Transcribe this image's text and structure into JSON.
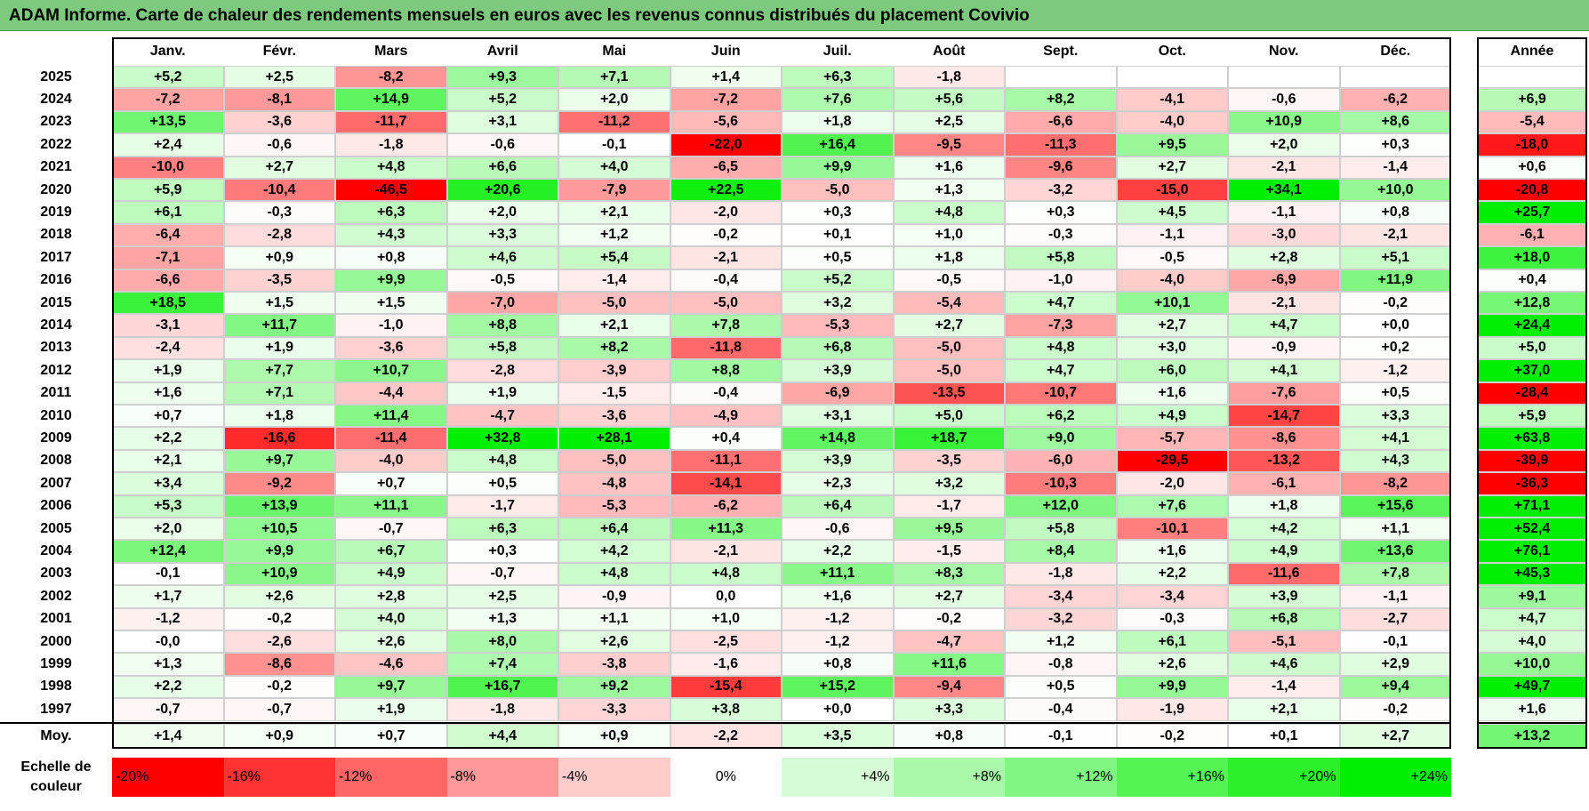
{
  "title": "ADAM Informe. Carte de chaleur des rendements mensuels en euros avec les revenus connus distribués du placement Covivio",
  "months": [
    "Janv.",
    "Févr.",
    "Mars",
    "Avril",
    "Mai",
    "Juin",
    "Juil.",
    "Août",
    "Sept.",
    "Oct.",
    "Nov.",
    "Déc."
  ],
  "year_header": "Année",
  "mean_label": "Moy.",
  "scale_label": "Echelle de couleur",
  "scale": [
    "-20%",
    "-16%",
    "-12%",
    "-8%",
    "-4%",
    "0%",
    "+4%",
    "+8%",
    "+12%",
    "+16%",
    "+20%",
    "+24%"
  ],
  "colors": {
    "title_bg": "#7DC97D",
    "negative": "#FF0000",
    "positive": "#00EE00",
    "neutral": "#FFFFFF"
  },
  "chart_data": {
    "type": "heatmap",
    "title": "ADAM Informe. Carte de chaleur des rendements mensuels en euros avec les revenus connus distribués du placement Covivio",
    "columns": [
      "Janv.",
      "Févr.",
      "Mars",
      "Avril",
      "Mai",
      "Juin",
      "Juil.",
      "Août",
      "Sept.",
      "Oct.",
      "Nov.",
      "Déc."
    ],
    "rows": [
      {
        "year": "2025",
        "values": [
          "+5,2",
          "+2,5",
          "-8,2",
          "+9,3",
          "+7,1",
          "+1,4",
          "+6,3",
          "-1,8",
          "",
          "",
          "",
          ""
        ],
        "annual": ""
      },
      {
        "year": "2024",
        "values": [
          "-7,2",
          "-8,1",
          "+14,9",
          "+5,2",
          "+2,0",
          "-7,2",
          "+7,6",
          "+5,6",
          "+8,2",
          "-4,1",
          "-0,6",
          "-6,2"
        ],
        "annual": "+6,9"
      },
      {
        "year": "2023",
        "values": [
          "+13,5",
          "-3,6",
          "-11,7",
          "+3,1",
          "-11,2",
          "-5,6",
          "+1,8",
          "+2,5",
          "-6,6",
          "-4,0",
          "+10,9",
          "+8,6"
        ],
        "annual": "-5,4"
      },
      {
        "year": "2022",
        "values": [
          "+2,4",
          "-0,6",
          "-1,8",
          "-0,6",
          "-0,1",
          "-22,0",
          "+16,4",
          "-9,5",
          "-11,3",
          "+9,5",
          "+2,0",
          "+0,3"
        ],
        "annual": "-18,0"
      },
      {
        "year": "2021",
        "values": [
          "-10,0",
          "+2,7",
          "+4,8",
          "+6,6",
          "+4,0",
          "-6,5",
          "+9,9",
          "+1,6",
          "-9,6",
          "+2,7",
          "-2,1",
          "-1,4"
        ],
        "annual": "+0,6"
      },
      {
        "year": "2020",
        "values": [
          "+5,9",
          "-10,4",
          "-46,5",
          "+20,6",
          "-7,9",
          "+22,5",
          "-5,0",
          "+1,3",
          "-3,2",
          "-15,0",
          "+34,1",
          "+10,0"
        ],
        "annual": "-20,8"
      },
      {
        "year": "2019",
        "values": [
          "+6,1",
          "-0,3",
          "+6,3",
          "+2,0",
          "+2,1",
          "-2,0",
          "+0,3",
          "+4,8",
          "+0,3",
          "+4,5",
          "-1,1",
          "+0,8"
        ],
        "annual": "+25,7"
      },
      {
        "year": "2018",
        "values": [
          "-6,4",
          "-2,8",
          "+4,3",
          "+3,3",
          "+1,2",
          "-0,2",
          "+0,1",
          "+1,0",
          "-0,3",
          "-1,1",
          "-3,0",
          "-2,1"
        ],
        "annual": "-6,1"
      },
      {
        "year": "2017",
        "values": [
          "-7,1",
          "+0,9",
          "+0,8",
          "+4,6",
          "+5,4",
          "-2,1",
          "+0,5",
          "+1,8",
          "+5,8",
          "-0,5",
          "+2,8",
          "+5,1"
        ],
        "annual": "+18,0"
      },
      {
        "year": "2016",
        "values": [
          "-6,6",
          "-3,5",
          "+9,9",
          "-0,5",
          "-1,4",
          "-0,4",
          "+5,2",
          "-0,5",
          "-1,0",
          "-4,0",
          "-6,9",
          "+11,9"
        ],
        "annual": "+0,4"
      },
      {
        "year": "2015",
        "values": [
          "+18,5",
          "+1,5",
          "+1,5",
          "-7,0",
          "-5,0",
          "-5,0",
          "+3,2",
          "-5,4",
          "+4,7",
          "+10,1",
          "-2,1",
          "-0,2"
        ],
        "annual": "+12,8"
      },
      {
        "year": "2014",
        "values": [
          "-3,1",
          "+11,7",
          "-1,0",
          "+8,8",
          "+2,1",
          "+7,8",
          "-5,3",
          "+2,7",
          "-7,3",
          "+2,7",
          "+4,7",
          "+0,0"
        ],
        "annual": "+24,4"
      },
      {
        "year": "2013",
        "values": [
          "-2,4",
          "+1,9",
          "-3,6",
          "+5,8",
          "+8,2",
          "-11,8",
          "+6,8",
          "-5,0",
          "+4,8",
          "+3,0",
          "-0,9",
          "+0,2"
        ],
        "annual": "+5,0"
      },
      {
        "year": "2012",
        "values": [
          "+1,9",
          "+7,7",
          "+10,7",
          "-2,8",
          "-3,9",
          "+8,8",
          "+3,9",
          "-5,0",
          "+4,7",
          "+6,0",
          "+4,1",
          "-1,2"
        ],
        "annual": "+37,0"
      },
      {
        "year": "2011",
        "values": [
          "+1,6",
          "+7,1",
          "-4,4",
          "+1,9",
          "-1,5",
          "-0,4",
          "-6,9",
          "-13,5",
          "-10,7",
          "+1,6",
          "-7,6",
          "+0,5"
        ],
        "annual": "-28,4"
      },
      {
        "year": "2010",
        "values": [
          "+0,7",
          "+1,8",
          "+11,4",
          "-4,7",
          "-3,6",
          "-4,9",
          "+3,1",
          "+5,0",
          "+6,2",
          "+4,9",
          "-14,7",
          "+3,3"
        ],
        "annual": "+5,9"
      },
      {
        "year": "2009",
        "values": [
          "+2,2",
          "-16,6",
          "-11,4",
          "+32,8",
          "+28,1",
          "+0,4",
          "+14,8",
          "+18,7",
          "+9,0",
          "-5,7",
          "-8,6",
          "+4,1"
        ],
        "annual": "+63,8"
      },
      {
        "year": "2008",
        "values": [
          "+2,1",
          "+9,7",
          "-4,0",
          "+4,8",
          "-5,0",
          "-11,1",
          "+3,9",
          "-3,5",
          "-6,0",
          "-29,5",
          "-13,2",
          "+4,3"
        ],
        "annual": "-39,9"
      },
      {
        "year": "2007",
        "values": [
          "+3,4",
          "-9,2",
          "+0,7",
          "+0,5",
          "-4,8",
          "-14,1",
          "+2,3",
          "+3,2",
          "-10,3",
          "-2,0",
          "-6,1",
          "-8,2"
        ],
        "annual": "-36,3"
      },
      {
        "year": "2006",
        "values": [
          "+5,3",
          "+13,9",
          "+11,1",
          "-1,7",
          "-5,3",
          "-6,2",
          "+6,4",
          "-1,7",
          "+12,0",
          "+7,6",
          "+1,8",
          "+15,6"
        ],
        "annual": "+71,1"
      },
      {
        "year": "2005",
        "values": [
          "+2,0",
          "+10,5",
          "-0,7",
          "+6,3",
          "+6,4",
          "+11,3",
          "-0,6",
          "+9,5",
          "+5,8",
          "-10,1",
          "+4,2",
          "+1,1"
        ],
        "annual": "+52,4"
      },
      {
        "year": "2004",
        "values": [
          "+12,4",
          "+9,9",
          "+6,7",
          "+0,3",
          "+4,2",
          "-2,1",
          "+2,2",
          "-1,5",
          "+8,4",
          "+1,6",
          "+4,9",
          "+13,6"
        ],
        "annual": "+76,1"
      },
      {
        "year": "2003",
        "values": [
          "-0,1",
          "+10,9",
          "+4,9",
          "-0,7",
          "+4,8",
          "+4,8",
          "+11,1",
          "+8,3",
          "-1,8",
          "+2,2",
          "-11,6",
          "+7,8"
        ],
        "annual": "+45,3"
      },
      {
        "year": "2002",
        "values": [
          "+1,7",
          "+2,6",
          "+2,8",
          "+2,5",
          "-0,9",
          "0,0",
          "+1,6",
          "+2,7",
          "-3,4",
          "-3,4",
          "+3,9",
          "-1,1"
        ],
        "annual": "+9,1"
      },
      {
        "year": "2001",
        "values": [
          "-1,2",
          "-0,2",
          "+4,0",
          "+1,3",
          "+1,1",
          "+1,0",
          "-1,2",
          "-0,2",
          "-3,2",
          "-0,3",
          "+6,8",
          "-2,7"
        ],
        "annual": "+4,7"
      },
      {
        "year": "2000",
        "values": [
          "-0,0",
          "-2,6",
          "+2,6",
          "+8,0",
          "+2,6",
          "-2,5",
          "-1,2",
          "-4,7",
          "+1,2",
          "+6,1",
          "-5,1",
          "-0,1"
        ],
        "annual": "+4,0"
      },
      {
        "year": "1999",
        "values": [
          "+1,3",
          "-8,6",
          "-4,6",
          "+7,4",
          "-3,8",
          "-1,6",
          "+0,8",
          "+11,6",
          "-0,8",
          "+2,6",
          "+4,6",
          "+2,9"
        ],
        "annual": "+10,0"
      },
      {
        "year": "1998",
        "values": [
          "+2,2",
          "-0,2",
          "+9,7",
          "+16,7",
          "+9,2",
          "-15,4",
          "+15,2",
          "-9,4",
          "+0,5",
          "+9,9",
          "-1,4",
          "+9,4"
        ],
        "annual": "+49,7"
      },
      {
        "year": "1997",
        "values": [
          "-0,7",
          "-0,7",
          "+1,9",
          "-1,8",
          "-3,3",
          "+3,8",
          "+0,0",
          "+3,3",
          "-0,4",
          "-1,9",
          "+2,1",
          "-0,2"
        ],
        "annual": "+1,6"
      }
    ],
    "mean": {
      "label": "Moy.",
      "values": [
        "+1,4",
        "+0,9",
        "+0,7",
        "+4,4",
        "+0,9",
        "-2,2",
        "+3,5",
        "+0,8",
        "-0,1",
        "-0,2",
        "+0,1",
        "+2,7"
      ],
      "annual": "+13,2"
    },
    "color_scale": {
      "min": -20,
      "max": 24,
      "steps": [
        "-20%",
        "-16%",
        "-12%",
        "-8%",
        "-4%",
        "0%",
        "+4%",
        "+8%",
        "+12%",
        "+16%",
        "+20%",
        "+24%"
      ]
    }
  }
}
